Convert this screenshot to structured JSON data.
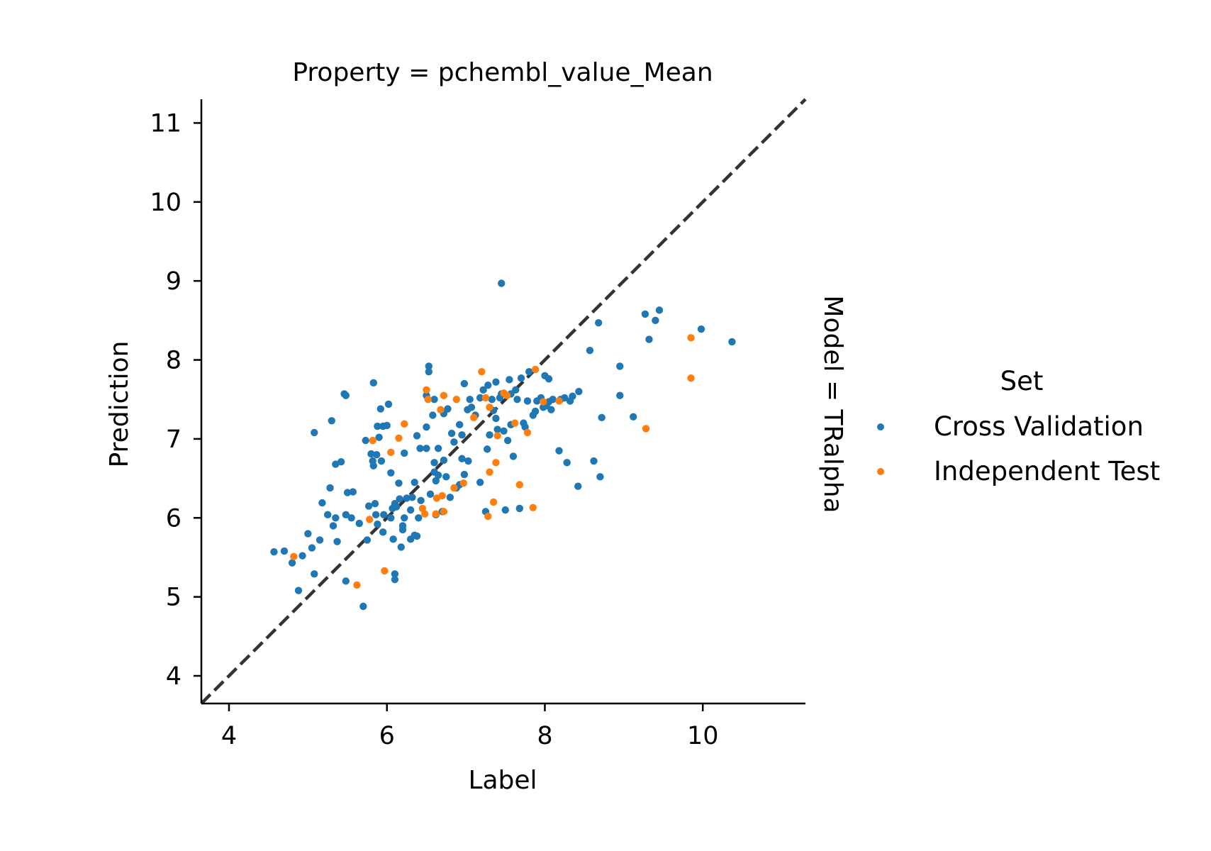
{
  "chart_data": {
    "type": "scatter",
    "title": "Property = pchembl_value_Mean",
    "row_label": "Model = TRalpha",
    "xlabel": "Label",
    "ylabel": "Prediction",
    "xlim": [
      3.65,
      11.3
    ],
    "ylim": [
      3.65,
      11.3
    ],
    "x_ticks": [
      4,
      6,
      8,
      10
    ],
    "y_ticks": [
      4,
      5,
      6,
      7,
      8,
      9,
      10,
      11
    ],
    "identity_line": true,
    "legend": {
      "title": "Set",
      "placement": "right"
    },
    "series": [
      {
        "name": "Cross Validation",
        "color": "#1f77b4",
        "points": [
          [
            4.57,
            5.57
          ],
          [
            4.7,
            5.58
          ],
          [
            4.8,
            5.43
          ],
          [
            4.88,
            5.08
          ],
          [
            4.93,
            5.52
          ],
          [
            5.0,
            5.8
          ],
          [
            5.05,
            5.62
          ],
          [
            5.08,
            5.29
          ],
          [
            5.08,
            7.08
          ],
          [
            5.15,
            5.72
          ],
          [
            5.18,
            6.19
          ],
          [
            5.25,
            6.04
          ],
          [
            5.28,
            6.38
          ],
          [
            5.3,
            7.23
          ],
          [
            5.32,
            5.9
          ],
          [
            5.35,
            6.0
          ],
          [
            5.37,
            5.7
          ],
          [
            5.35,
            6.68
          ],
          [
            5.42,
            6.71
          ],
          [
            5.46,
            7.57
          ],
          [
            5.48,
            7.55
          ],
          [
            5.48,
            6.04
          ],
          [
            5.48,
            5.2
          ],
          [
            5.5,
            6.32
          ],
          [
            5.57,
            6.33
          ],
          [
            5.55,
            6.0
          ],
          [
            5.65,
            5.93
          ],
          [
            5.7,
            4.88
          ],
          [
            5.73,
            6.98
          ],
          [
            5.75,
            5.72
          ],
          [
            5.77,
            6.15
          ],
          [
            5.8,
            6.81
          ],
          [
            5.82,
            6.72
          ],
          [
            5.83,
            6.66
          ],
          [
            5.83,
            7.71
          ],
          [
            5.85,
            6.18
          ],
          [
            5.86,
            6.04
          ],
          [
            5.87,
            6.8
          ],
          [
            5.88,
            7.16
          ],
          [
            5.88,
            5.92
          ],
          [
            5.9,
            7.02
          ],
          [
            5.92,
            7.38
          ],
          [
            5.93,
            6.72
          ],
          [
            5.95,
            7.16
          ],
          [
            5.95,
            5.82
          ],
          [
            5.96,
            6.04
          ],
          [
            6.0,
            7.17
          ],
          [
            6.02,
            7.44
          ],
          [
            6.05,
            6.0
          ],
          [
            6.05,
            6.57
          ],
          [
            6.07,
            6.12
          ],
          [
            6.08,
            5.73
          ],
          [
            6.1,
            5.29
          ],
          [
            6.1,
            5.22
          ],
          [
            6.1,
            6.18
          ],
          [
            6.12,
            6.14
          ],
          [
            6.15,
            6.44
          ],
          [
            6.16,
            6.24
          ],
          [
            6.18,
            5.63
          ],
          [
            6.2,
            5.9
          ],
          [
            6.2,
            5.85
          ],
          [
            6.22,
            6.82
          ],
          [
            6.22,
            6.0
          ],
          [
            6.25,
            6.25
          ],
          [
            6.3,
            5.73
          ],
          [
            6.3,
            6.1
          ],
          [
            6.32,
            6.26
          ],
          [
            6.35,
            5.78
          ],
          [
            6.35,
            6.45
          ],
          [
            6.38,
            7.04
          ],
          [
            6.38,
            5.77
          ],
          [
            6.4,
            6.0
          ],
          [
            6.42,
            6.88
          ],
          [
            6.43,
            6.22
          ],
          [
            6.5,
            7.15
          ],
          [
            6.5,
            7.55
          ],
          [
            6.5,
            6.88
          ],
          [
            6.53,
            7.85
          ],
          [
            6.53,
            7.92
          ],
          [
            6.55,
            6.3
          ],
          [
            6.58,
            7.3
          ],
          [
            6.6,
            7.5
          ],
          [
            6.6,
            6.7
          ],
          [
            6.6,
            6.58
          ],
          [
            6.62,
            6.47
          ],
          [
            6.62,
            6.04
          ],
          [
            6.65,
            6.54
          ],
          [
            6.65,
            6.88
          ],
          [
            6.7,
            6.08
          ],
          [
            6.72,
            6.73
          ],
          [
            6.72,
            7.32
          ],
          [
            6.75,
            6.52
          ],
          [
            6.77,
            7.38
          ],
          [
            6.8,
            6.26
          ],
          [
            6.82,
            7.07
          ],
          [
            6.85,
            6.96
          ],
          [
            6.88,
            6.38
          ],
          [
            6.92,
            6.42
          ],
          [
            6.92,
            7.18
          ],
          [
            6.95,
            6.75
          ],
          [
            6.95,
            7.05
          ],
          [
            6.98,
            6.55
          ],
          [
            6.98,
            7.7
          ],
          [
            7.02,
            7.37
          ],
          [
            7.03,
            6.72
          ],
          [
            7.05,
            7.5
          ],
          [
            7.07,
            7.4
          ],
          [
            7.12,
            7.3
          ],
          [
            7.18,
            7.52
          ],
          [
            7.18,
            6.45
          ],
          [
            7.22,
            7.62
          ],
          [
            7.25,
            6.08
          ],
          [
            7.27,
            6.87
          ],
          [
            7.28,
            7.68
          ],
          [
            7.3,
            7.05
          ],
          [
            7.33,
            7.5
          ],
          [
            7.35,
            7.36
          ],
          [
            7.38,
            7.72
          ],
          [
            7.38,
            7.26
          ],
          [
            7.4,
            7.12
          ],
          [
            7.43,
            7.52
          ],
          [
            7.45,
            8.97
          ],
          [
            7.45,
            7.57
          ],
          [
            7.48,
            7.1
          ],
          [
            7.5,
            6.1
          ],
          [
            7.53,
            6.98
          ],
          [
            7.55,
            7.75
          ],
          [
            7.57,
            7.57
          ],
          [
            7.57,
            7.18
          ],
          [
            7.6,
            6.78
          ],
          [
            7.63,
            7.62
          ],
          [
            7.65,
            7.5
          ],
          [
            7.68,
            6.12
          ],
          [
            7.7,
            7.77
          ],
          [
            7.73,
            7.2
          ],
          [
            7.75,
            7.15
          ],
          [
            7.78,
            7.48
          ],
          [
            7.8,
            7.85
          ],
          [
            7.85,
            7.3
          ],
          [
            7.88,
            7.35
          ],
          [
            7.9,
            7.48
          ],
          [
            7.95,
            7.52
          ],
          [
            7.98,
            7.4
          ],
          [
            8.0,
            7.8
          ],
          [
            8.02,
            7.42
          ],
          [
            8.05,
            7.76
          ],
          [
            8.05,
            7.47
          ],
          [
            8.08,
            7.37
          ],
          [
            8.1,
            7.5
          ],
          [
            8.18,
            6.85
          ],
          [
            8.2,
            7.5
          ],
          [
            8.25,
            7.52
          ],
          [
            8.28,
            6.7
          ],
          [
            8.32,
            7.48
          ],
          [
            8.35,
            7.54
          ],
          [
            8.42,
            6.4
          ],
          [
            8.43,
            7.6
          ],
          [
            8.57,
            8.12
          ],
          [
            8.62,
            6.72
          ],
          [
            8.68,
            8.47
          ],
          [
            8.7,
            6.52
          ],
          [
            8.72,
            7.27
          ],
          [
            8.95,
            7.92
          ],
          [
            8.95,
            7.55
          ],
          [
            9.12,
            7.28
          ],
          [
            9.27,
            8.58
          ],
          [
            9.32,
            8.26
          ],
          [
            9.4,
            8.5
          ],
          [
            9.45,
            8.63
          ],
          [
            9.98,
            8.39
          ],
          [
            10.37,
            8.23
          ]
        ]
      },
      {
        "name": "Independent Test",
        "color": "#ff7f0e",
        "points": [
          [
            4.82,
            5.51
          ],
          [
            5.62,
            5.15
          ],
          [
            5.78,
            5.98
          ],
          [
            5.82,
            6.98
          ],
          [
            5.97,
            5.33
          ],
          [
            6.05,
            6.83
          ],
          [
            6.15,
            7.01
          ],
          [
            6.22,
            7.19
          ],
          [
            6.45,
            6.12
          ],
          [
            6.48,
            6.05
          ],
          [
            6.5,
            7.62
          ],
          [
            6.52,
            7.5
          ],
          [
            6.62,
            6.05
          ],
          [
            6.63,
            6.25
          ],
          [
            6.68,
            7.37
          ],
          [
            6.7,
            6.28
          ],
          [
            6.72,
            7.55
          ],
          [
            6.72,
            6.08
          ],
          [
            6.85,
            6.38
          ],
          [
            6.88,
            7.5
          ],
          [
            6.97,
            6.44
          ],
          [
            7.1,
            7.27
          ],
          [
            7.2,
            7.85
          ],
          [
            7.25,
            7.52
          ],
          [
            7.28,
            6.02
          ],
          [
            7.3,
            6.58
          ],
          [
            7.3,
            7.4
          ],
          [
            7.35,
            6.2
          ],
          [
            7.38,
            6.7
          ],
          [
            7.4,
            7.04
          ],
          [
            7.48,
            7.58
          ],
          [
            7.52,
            7.55
          ],
          [
            7.62,
            7.2
          ],
          [
            7.68,
            6.42
          ],
          [
            7.78,
            7.08
          ],
          [
            7.85,
            6.13
          ],
          [
            7.88,
            7.88
          ],
          [
            7.98,
            7.47
          ],
          [
            8.18,
            7.48
          ],
          [
            9.28,
            7.13
          ],
          [
            9.85,
            8.28
          ],
          [
            9.85,
            7.77
          ]
        ]
      }
    ]
  }
}
